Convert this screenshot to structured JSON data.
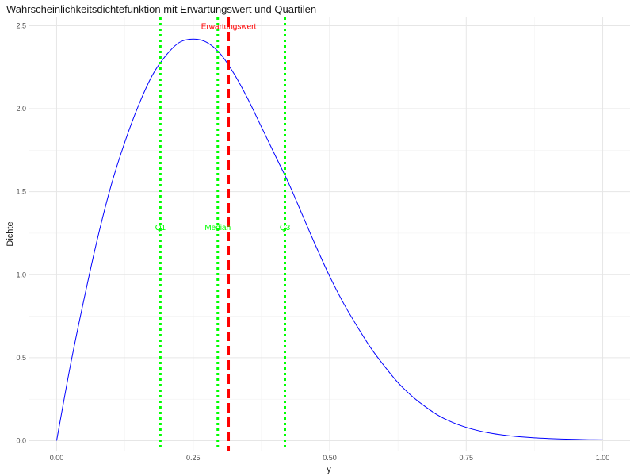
{
  "chart_data": {
    "type": "line",
    "title": "Wahrscheinlichkeitsdichtefunktion mit Erwartungswert und Quartilen",
    "xlabel": "y",
    "ylabel": "Dichte",
    "xlim": [
      -0.05,
      1.05
    ],
    "ylim": [
      -0.06,
      2.55
    ],
    "x_ticks": [
      0.0,
      0.25,
      0.5,
      0.75,
      1.0
    ],
    "x_tick_labels": [
      "0.00",
      "0.25",
      "0.50",
      "0.75",
      "1.00"
    ],
    "y_ticks": [
      0.0,
      0.5,
      1.0,
      1.5,
      2.0,
      2.5
    ],
    "y_tick_labels": [
      "0.0",
      "0.5",
      "1.0",
      "1.5",
      "2.0",
      "2.5"
    ],
    "grid": true,
    "series": [
      {
        "color": "#0000ff",
        "x": [
          0.0,
          0.025,
          0.05,
          0.075,
          0.1,
          0.125,
          0.15,
          0.175,
          0.2,
          0.225,
          0.25,
          0.275,
          0.3,
          0.325,
          0.35,
          0.375,
          0.4,
          0.425,
          0.45,
          0.475,
          0.5,
          0.525,
          0.55,
          0.575,
          0.6,
          0.625,
          0.65,
          0.675,
          0.7,
          0.725,
          0.75,
          0.775,
          0.8,
          0.825,
          0.85,
          0.875,
          0.9,
          0.925,
          0.95,
          0.975,
          1.0
        ],
        "y": [
          0.0,
          0.45,
          0.85,
          1.22,
          1.54,
          1.8,
          2.02,
          2.2,
          2.32,
          2.4,
          2.42,
          2.4,
          2.33,
          2.21,
          2.06,
          1.89,
          1.72,
          1.55,
          1.36,
          1.17,
          0.99,
          0.83,
          0.69,
          0.56,
          0.45,
          0.35,
          0.27,
          0.205,
          0.15,
          0.11,
          0.08,
          0.058,
          0.042,
          0.031,
          0.023,
          0.017,
          0.013,
          0.01,
          0.008,
          0.006,
          0.005
        ]
      }
    ],
    "vlines": [
      {
        "x": 0.19,
        "color": "#00ff00",
        "style": "dotted",
        "label": "Q1"
      },
      {
        "x": 0.295,
        "color": "#00ff00",
        "style": "dotted",
        "label": "Median"
      },
      {
        "x": 0.418,
        "color": "#00ff00",
        "style": "dotted",
        "label": "Q3"
      },
      {
        "x": 0.315,
        "color": "#ff0000",
        "style": "dashed",
        "label": "Erwartungswert"
      }
    ],
    "quartile_label_y": 1.27,
    "mean_label_y": 2.48
  }
}
